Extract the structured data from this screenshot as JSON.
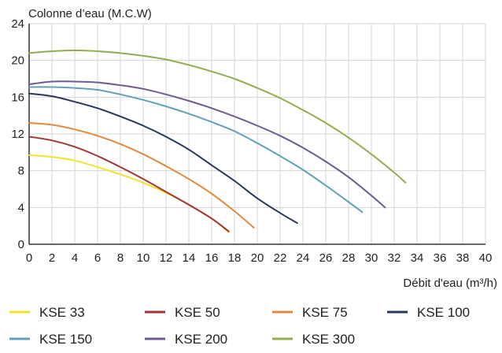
{
  "chart_data": {
    "type": "line",
    "ylabel": "Colonne d’eau (M.C.W)",
    "xlabel": "Débit d'eau (m³/h)",
    "xlim": [
      0,
      40
    ],
    "ylim": [
      0,
      24
    ],
    "xticks": [
      0,
      2,
      4,
      6,
      8,
      10,
      12,
      14,
      16,
      18,
      20,
      22,
      24,
      26,
      28,
      30,
      32,
      34,
      36,
      38,
      40
    ],
    "yticks": [
      0,
      4,
      8,
      12,
      16,
      20,
      24
    ],
    "grid": true,
    "legend_position": "bottom",
    "series": [
      {
        "name": "KSE 33",
        "color": "#f2e32a",
        "x": [
          0,
          2,
          4,
          6,
          8,
          10,
          12,
          14,
          16,
          17.5
        ],
        "y": [
          9.7,
          9.5,
          9.1,
          8.4,
          7.6,
          6.7,
          5.6,
          4.3,
          2.8,
          1.3
        ]
      },
      {
        "name": "KSE 50",
        "color": "#a3343a",
        "x": [
          0,
          2,
          4,
          6,
          8,
          10,
          12,
          14,
          16,
          17.5
        ],
        "y": [
          11.7,
          11.3,
          10.6,
          9.6,
          8.4,
          7.1,
          5.7,
          4.3,
          2.8,
          1.4
        ]
      },
      {
        "name": "KSE 75",
        "color": "#e08a3c",
        "x": [
          0,
          2,
          4,
          6,
          8,
          10,
          12,
          14,
          16,
          18,
          19.7
        ],
        "y": [
          13.2,
          13.0,
          12.5,
          11.8,
          10.9,
          9.8,
          8.5,
          7.1,
          5.5,
          3.6,
          1.8
        ]
      },
      {
        "name": "KSE 100",
        "color": "#27385a",
        "x": [
          0,
          2,
          4,
          6,
          8,
          10,
          12,
          14,
          16,
          18,
          20,
          22,
          23.5
        ],
        "y": [
          16.4,
          16.1,
          15.5,
          14.8,
          13.9,
          12.9,
          11.7,
          10.3,
          8.6,
          6.9,
          5.0,
          3.4,
          2.3
        ]
      },
      {
        "name": "KSE 150",
        "color": "#5fa2b8",
        "x": [
          0,
          2,
          4,
          6,
          8,
          10,
          12,
          14,
          16,
          18,
          20,
          22,
          24,
          26,
          28,
          29.2
        ],
        "y": [
          17.1,
          17.1,
          17.0,
          16.8,
          16.3,
          15.7,
          15.0,
          14.2,
          13.3,
          12.3,
          11.0,
          9.6,
          8.1,
          6.4,
          4.6,
          3.5
        ]
      },
      {
        "name": "KSE 200",
        "color": "#6e5b93",
        "x": [
          0,
          2,
          4,
          6,
          8,
          10,
          12,
          14,
          16,
          18,
          20,
          22,
          24,
          26,
          28,
          30,
          31.2
        ],
        "y": [
          17.4,
          17.7,
          17.7,
          17.6,
          17.3,
          16.9,
          16.3,
          15.6,
          14.8,
          13.9,
          12.9,
          11.8,
          10.5,
          9.0,
          7.3,
          5.3,
          4.0
        ]
      },
      {
        "name": "KSE 300",
        "color": "#93ad52",
        "x": [
          0,
          2,
          4,
          6,
          8,
          10,
          12,
          14,
          16,
          18,
          20,
          22,
          24,
          26,
          28,
          30,
          32,
          33
        ],
        "y": [
          20.8,
          21.0,
          21.1,
          21.0,
          20.8,
          20.5,
          20.1,
          19.5,
          18.8,
          18.0,
          17.0,
          15.9,
          14.6,
          13.2,
          11.6,
          9.8,
          7.8,
          6.7
        ]
      }
    ]
  }
}
